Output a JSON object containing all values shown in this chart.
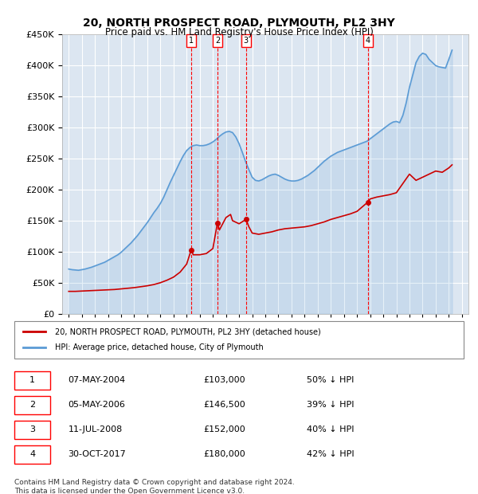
{
  "title": "20, NORTH PROSPECT ROAD, PLYMOUTH, PL2 3HY",
  "subtitle": "Price paid vs. HM Land Registry's House Price Index (HPI)",
  "footer": "Contains HM Land Registry data © Crown copyright and database right 2024.\nThis data is licensed under the Open Government Licence v3.0.",
  "legend_house": "20, NORTH PROSPECT ROAD, PLYMOUTH, PL2 3HY (detached house)",
  "legend_hpi": "HPI: Average price, detached house, City of Plymouth",
  "house_color": "#cc0000",
  "hpi_color": "#5b9bd5",
  "background_color": "#dce6f1",
  "plot_bg_color": "#ffffff",
  "ylim": [
    0,
    450000
  ],
  "yticks": [
    0,
    50000,
    100000,
    150000,
    200000,
    250000,
    300000,
    350000,
    400000,
    450000
  ],
  "transactions": [
    {
      "id": 1,
      "date": "07-MAY-2004",
      "year": 2004.35,
      "price": 103000,
      "pct": "50%",
      "dir": "↓"
    },
    {
      "id": 2,
      "date": "05-MAY-2006",
      "year": 2006.35,
      "price": 146500,
      "pct": "39%",
      "dir": "↓"
    },
    {
      "id": 3,
      "date": "11-JUL-2008",
      "year": 2008.53,
      "price": 152000,
      "pct": "40%",
      "dir": "↓"
    },
    {
      "id": 4,
      "date": "30-OCT-2017",
      "year": 2017.83,
      "price": 180000,
      "pct": "42%",
      "dir": "↓"
    }
  ],
  "hpi_years": [
    1995,
    1995.25,
    1995.5,
    1995.75,
    1996,
    1996.25,
    1996.5,
    1996.75,
    1997,
    1997.25,
    1997.5,
    1997.75,
    1998,
    1998.25,
    1998.5,
    1998.75,
    1999,
    1999.25,
    1999.5,
    1999.75,
    2000,
    2000.25,
    2000.5,
    2000.75,
    2001,
    2001.25,
    2001.5,
    2001.75,
    2002,
    2002.25,
    2002.5,
    2002.75,
    2003,
    2003.25,
    2003.5,
    2003.75,
    2004,
    2004.25,
    2004.5,
    2004.75,
    2005,
    2005.25,
    2005.5,
    2005.75,
    2006,
    2006.25,
    2006.5,
    2006.75,
    2007,
    2007.25,
    2007.5,
    2007.75,
    2008,
    2008.25,
    2008.5,
    2008.75,
    2009,
    2009.25,
    2009.5,
    2009.75,
    2010,
    2010.25,
    2010.5,
    2010.75,
    2011,
    2011.25,
    2011.5,
    2011.75,
    2012,
    2012.25,
    2012.5,
    2012.75,
    2013,
    2013.25,
    2013.5,
    2013.75,
    2014,
    2014.25,
    2014.5,
    2014.75,
    2015,
    2015.25,
    2015.5,
    2015.75,
    2016,
    2016.25,
    2016.5,
    2016.75,
    2017,
    2017.25,
    2017.5,
    2017.75,
    2018,
    2018.25,
    2018.5,
    2018.75,
    2019,
    2019.25,
    2019.5,
    2019.75,
    2020,
    2020.25,
    2020.5,
    2020.75,
    2021,
    2021.25,
    2021.5,
    2021.75,
    2022,
    2022.25,
    2022.5,
    2022.75,
    2023,
    2023.25,
    2023.5,
    2023.75,
    2024,
    2024.25
  ],
  "hpi_values": [
    72000,
    71000,
    70500,
    70000,
    71000,
    72000,
    73500,
    75000,
    77000,
    79000,
    81000,
    83000,
    86000,
    89000,
    92000,
    95000,
    99000,
    104000,
    109000,
    114000,
    120000,
    126000,
    133000,
    140000,
    147000,
    155000,
    163000,
    170000,
    178000,
    188000,
    200000,
    212000,
    223000,
    234000,
    245000,
    255000,
    263000,
    268000,
    271000,
    272000,
    271000,
    271000,
    272000,
    274000,
    277000,
    281000,
    286000,
    290000,
    293000,
    294000,
    292000,
    285000,
    274000,
    260000,
    245000,
    232000,
    220000,
    215000,
    214000,
    216000,
    219000,
    222000,
    224000,
    225000,
    223000,
    220000,
    217000,
    215000,
    214000,
    214000,
    215000,
    217000,
    220000,
    223000,
    227000,
    231000,
    236000,
    241000,
    246000,
    250000,
    254000,
    257000,
    260000,
    262000,
    264000,
    266000,
    268000,
    270000,
    272000,
    274000,
    276000,
    278000,
    282000,
    286000,
    290000,
    294000,
    298000,
    302000,
    306000,
    309000,
    310000,
    308000,
    320000,
    340000,
    365000,
    385000,
    405000,
    415000,
    420000,
    418000,
    410000,
    405000,
    400000,
    398000,
    397000,
    396000,
    410000,
    425000
  ],
  "house_years": [
    1995,
    1995.5,
    1996,
    1996.5,
    1997,
    1997.5,
    1998,
    1998.5,
    1999,
    1999.5,
    2000,
    2000.5,
    2001,
    2001.5,
    2002,
    2002.5,
    2003,
    2003.5,
    2004,
    2004.35,
    2004.5,
    2005,
    2005.5,
    2006,
    2006.35,
    2006.5,
    2007,
    2007.35,
    2007.5,
    2008,
    2008.53,
    2008.75,
    2009,
    2009.5,
    2010,
    2010.5,
    2011,
    2011.5,
    2012,
    2012.5,
    2013,
    2013.5,
    2014,
    2014.5,
    2015,
    2015.5,
    2016,
    2016.5,
    2017,
    2017.83,
    2018,
    2018.5,
    2019,
    2019.5,
    2020,
    2020.5,
    2021,
    2021.5,
    2022,
    2022.5,
    2023,
    2023.5,
    2024,
    2024.25
  ],
  "house_values": [
    36000,
    36000,
    36500,
    37000,
    37500,
    38000,
    38500,
    39000,
    40000,
    41000,
    42000,
    43500,
    45000,
    47000,
    50000,
    54000,
    59000,
    67000,
    80000,
    103000,
    95000,
    95000,
    97000,
    105000,
    146500,
    135000,
    155000,
    160000,
    150000,
    145000,
    152000,
    140000,
    130000,
    128000,
    130000,
    132000,
    135000,
    137000,
    138000,
    139000,
    140000,
    142000,
    145000,
    148000,
    152000,
    155000,
    158000,
    161000,
    165000,
    180000,
    185000,
    188000,
    190000,
    192000,
    195000,
    210000,
    225000,
    215000,
    220000,
    225000,
    230000,
    228000,
    235000,
    240000
  ]
}
